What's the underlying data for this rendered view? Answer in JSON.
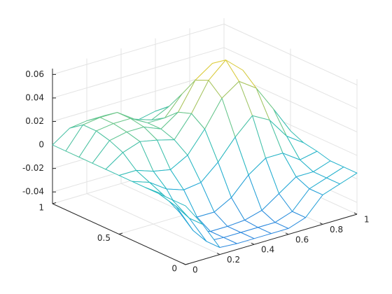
{
  "chart_data": {
    "type": "mesh",
    "x": [
      0,
      0.1,
      0.2,
      0.3,
      0.4,
      0.5,
      0.6,
      0.7,
      0.8,
      0.9,
      1
    ],
    "y": [
      0,
      0.1,
      0.2,
      0.3,
      0.4,
      0.5,
      0.6,
      0.7,
      0.8,
      0.9,
      1
    ],
    "z": [
      [
        0,
        -0.02,
        -0.044,
        -0.045,
        -0.045,
        -0.045,
        -0.045,
        -0.04,
        -0.025,
        -0.02,
        -0.015
      ],
      [
        0,
        -0.02,
        -0.044,
        -0.045,
        -0.045,
        -0.045,
        -0.045,
        -0.04,
        -0.025,
        -0.02,
        -0.015
      ],
      [
        0,
        -0.015,
        -0.04,
        -0.045,
        -0.045,
        -0.044,
        -0.04,
        -0.03,
        -0.02,
        -0.02,
        -0.015
      ],
      [
        0,
        -0.01,
        -0.03,
        -0.038,
        -0.038,
        -0.03,
        -0.015,
        -0.005,
        -0.005,
        -0.015,
        -0.012
      ],
      [
        0,
        -0.005,
        -0.015,
        -0.02,
        -0.018,
        -0.005,
        0.012,
        0.026,
        0.018,
        0,
        -0.01
      ],
      [
        0,
        0,
        -0.005,
        -0.008,
        0,
        0.018,
        0.04,
        0.05,
        0.04,
        0.018,
        -0.005
      ],
      [
        0,
        0.01,
        0.015,
        0.012,
        0.008,
        0.026,
        0.05,
        0.063,
        0.05,
        0.026,
        0
      ],
      [
        0,
        0.015,
        0.018,
        0.018,
        0.012,
        0.022,
        0.045,
        0.055,
        0.045,
        0.022,
        0
      ],
      [
        0,
        0.018,
        0.02,
        0.02,
        0.012,
        0.012,
        0.028,
        0.035,
        0.028,
        0.012,
        0
      ],
      [
        0,
        0.018,
        0.02,
        0.02,
        0.01,
        0.005,
        0.012,
        0.015,
        0.012,
        0.005,
        0
      ],
      [
        0,
        0.01,
        0.012,
        0.012,
        0.005,
        0,
        0.003,
        0.004,
        0.003,
        0,
        0
      ]
    ],
    "xlim": [
      0,
      1
    ],
    "ylim": [
      0,
      1
    ],
    "zlim": [
      -0.05,
      0.065
    ],
    "xticks": [
      0,
      0.2,
      0.4,
      0.6,
      0.8,
      1
    ],
    "yticks": [
      0,
      0.5,
      1
    ],
    "zticks": [
      -0.04,
      -0.02,
      0,
      0.02,
      0.04,
      0.06
    ],
    "grid": true,
    "colormap": [
      "#2f7fe0",
      "#22a9d6",
      "#28bcbd",
      "#6cc78a",
      "#c8c44a",
      "#f4d62a"
    ]
  }
}
